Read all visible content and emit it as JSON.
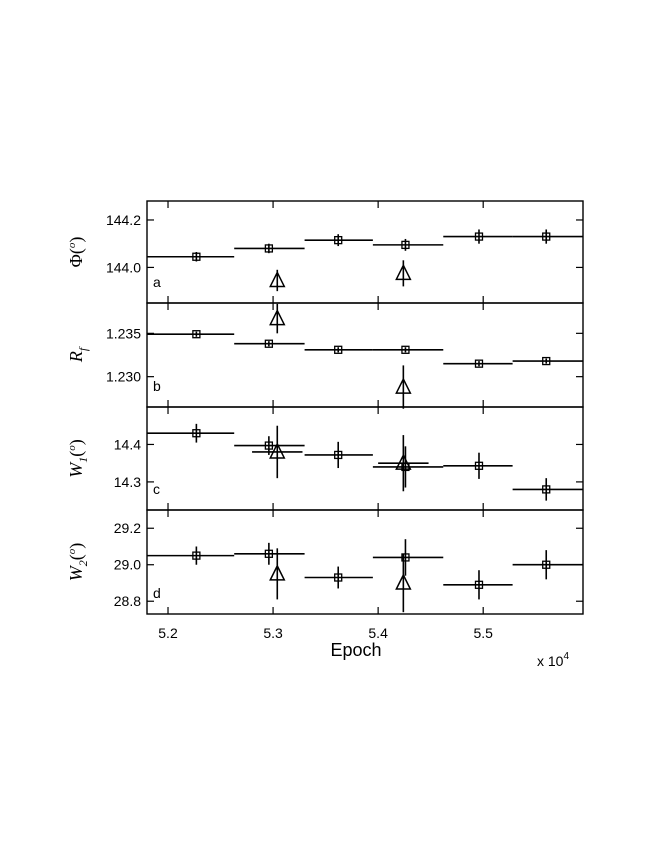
{
  "chart_data": {
    "type": "scatter",
    "xlabel": "Epoch",
    "x_multiplier": "x 10",
    "x_multiplier_exp": "4",
    "xlim": [
      5.18,
      5.595
    ],
    "xticks": [
      5.2,
      5.3,
      5.4,
      5.5
    ],
    "xtick_labels": [
      "5.2",
      "5.3",
      "5.4",
      "5.5"
    ],
    "panels": [
      {
        "letter": "a",
        "ylabel_main": "Φ(",
        "ylabel_sub": "",
        "ylabel_unit": "o",
        "ylabel_tail": ")",
        "ylim": [
          143.85,
          144.28
        ],
        "yticks": [
          144.0,
          144.2
        ],
        "ytick_labels": [
          "144.0",
          "144.2"
        ],
        "series": [
          {
            "marker": "square",
            "points": [
              {
                "x": 5.227,
                "y": 144.045,
                "xerr": [
                  5.18,
                  5.263
                ],
                "yerr": 0.02
              },
              {
                "x": 5.296,
                "y": 144.08,
                "xerr": [
                  5.263,
                  5.33
                ],
                "yerr": 0.02
              },
              {
                "x": 5.362,
                "y": 144.115,
                "xerr": [
                  5.33,
                  5.395
                ],
                "yerr": 0.025
              },
              {
                "x": 5.426,
                "y": 144.095,
                "xerr": [
                  5.395,
                  5.462
                ],
                "yerr": 0.025
              },
              {
                "x": 5.496,
                "y": 144.13,
                "xerr": [
                  5.462,
                  5.528
                ],
                "yerr": 0.03
              },
              {
                "x": 5.56,
                "y": 144.13,
                "xerr": [
                  5.528,
                  5.595
                ],
                "yerr": 0.03
              }
            ]
          },
          {
            "marker": "triangle",
            "points": [
              {
                "x": 5.304,
                "y": 143.945,
                "yerr": 0.045
              },
              {
                "x": 5.424,
                "y": 143.975,
                "yerr": 0.055
              }
            ]
          }
        ]
      },
      {
        "letter": "b",
        "ylabel_main": "R",
        "ylabel_sub": "f",
        "ylabel_unit": "",
        "ylabel_tail": "",
        "ylim": [
          1.2265,
          1.2385
        ],
        "yticks": [
          1.23,
          1.235
        ],
        "ytick_labels": [
          "1.230",
          "1.235"
        ],
        "series": [
          {
            "marker": "square",
            "points": [
              {
                "x": 5.227,
                "y": 1.2349,
                "xerr": [
                  5.18,
                  5.263
                ],
                "yerr": 0.0003
              },
              {
                "x": 5.296,
                "y": 1.2338,
                "xerr": [
                  5.263,
                  5.33
                ],
                "yerr": 0.0003
              },
              {
                "x": 5.362,
                "y": 1.2331,
                "xerr": [
                  5.33,
                  5.395
                ],
                "yerr": 0.0003
              },
              {
                "x": 5.426,
                "y": 1.2331,
                "xerr": [
                  5.395,
                  5.462
                ],
                "yerr": 0.0003
              },
              {
                "x": 5.496,
                "y": 1.2315,
                "xerr": [
                  5.462,
                  5.528
                ],
                "yerr": 0.0003
              },
              {
                "x": 5.56,
                "y": 1.2318,
                "xerr": [
                  5.528,
                  5.595
                ],
                "yerr": 0.0003
              }
            ]
          },
          {
            "marker": "triangle",
            "points": [
              {
                "x": 5.304,
                "y": 1.2367,
                "yerr": 0.0017
              },
              {
                "x": 5.424,
                "y": 1.2288,
                "yerr": 0.0025
              }
            ]
          }
        ]
      },
      {
        "letter": "c",
        "ylabel_main": "W",
        "ylabel_sub": "1",
        "ylabel_unit": "o",
        "ylabel_tail": ")",
        "ylim": [
          14.225,
          14.5
        ],
        "yticks": [
          14.3,
          14.4
        ],
        "ytick_labels": [
          "14.3",
          "14.4"
        ],
        "series": [
          {
            "marker": "square",
            "points": [
              {
                "x": 5.227,
                "y": 14.43,
                "xerr": [
                  5.18,
                  5.263
                ],
                "yerr": 0.025
              },
              {
                "x": 5.296,
                "y": 14.397,
                "xerr": [
                  5.263,
                  5.33
                ],
                "yerr": 0.025
              },
              {
                "x": 5.362,
                "y": 14.372,
                "xerr": [
                  5.33,
                  5.395
                ],
                "yerr": 0.035
              },
              {
                "x": 5.426,
                "y": 14.34,
                "xerr": [
                  5.395,
                  5.462
                ],
                "yerr": 0.055
              },
              {
                "x": 5.496,
                "y": 14.343,
                "xerr": [
                  5.462,
                  5.528
                ],
                "yerr": 0.035
              },
              {
                "x": 5.56,
                "y": 14.28,
                "xerr": [
                  5.528,
                  5.595
                ],
                "yerr": 0.03
              }
            ]
          },
          {
            "marker": "triangle",
            "points": [
              {
                "x": 5.304,
                "y": 14.38,
                "xerr": [
                  5.28,
                  5.328
                ],
                "yerr": 0.07
              },
              {
                "x": 5.424,
                "y": 14.35,
                "xerr": [
                  5.4,
                  5.448
                ],
                "yerr": 0.075
              }
            ]
          }
        ]
      },
      {
        "letter": "d",
        "ylabel_main": "W",
        "ylabel_sub": "2",
        "ylabel_unit": "o",
        "ylabel_tail": ")",
        "ylim": [
          28.73,
          29.3
        ],
        "yticks": [
          28.8,
          29.0,
          29.2
        ],
        "ytick_labels": [
          "28.8",
          "29.0",
          "29.2"
        ],
        "series": [
          {
            "marker": "square",
            "points": [
              {
                "x": 5.227,
                "y": 29.05,
                "xerr": [
                  5.18,
                  5.263
                ],
                "yerr": 0.05
              },
              {
                "x": 5.296,
                "y": 29.06,
                "xerr": [
                  5.263,
                  5.33
                ],
                "yerr": 0.06
              },
              {
                "x": 5.362,
                "y": 28.93,
                "xerr": [
                  5.33,
                  5.395
                ],
                "yerr": 0.06
              },
              {
                "x": 5.426,
                "y": 29.04,
                "xerr": [
                  5.395,
                  5.462
                ],
                "yerr": 0.1
              },
              {
                "x": 5.496,
                "y": 28.89,
                "xerr": [
                  5.462,
                  5.528
                ],
                "yerr": 0.08
              },
              {
                "x": 5.56,
                "y": 29.0,
                "xerr": [
                  5.528,
                  5.595
                ],
                "yerr": 0.08
              }
            ]
          },
          {
            "marker": "triangle",
            "points": [
              {
                "x": 5.304,
                "y": 28.95,
                "yerr": 0.14
              },
              {
                "x": 5.424,
                "y": 28.9,
                "yerr": 0.16
              }
            ]
          }
        ]
      }
    ]
  }
}
